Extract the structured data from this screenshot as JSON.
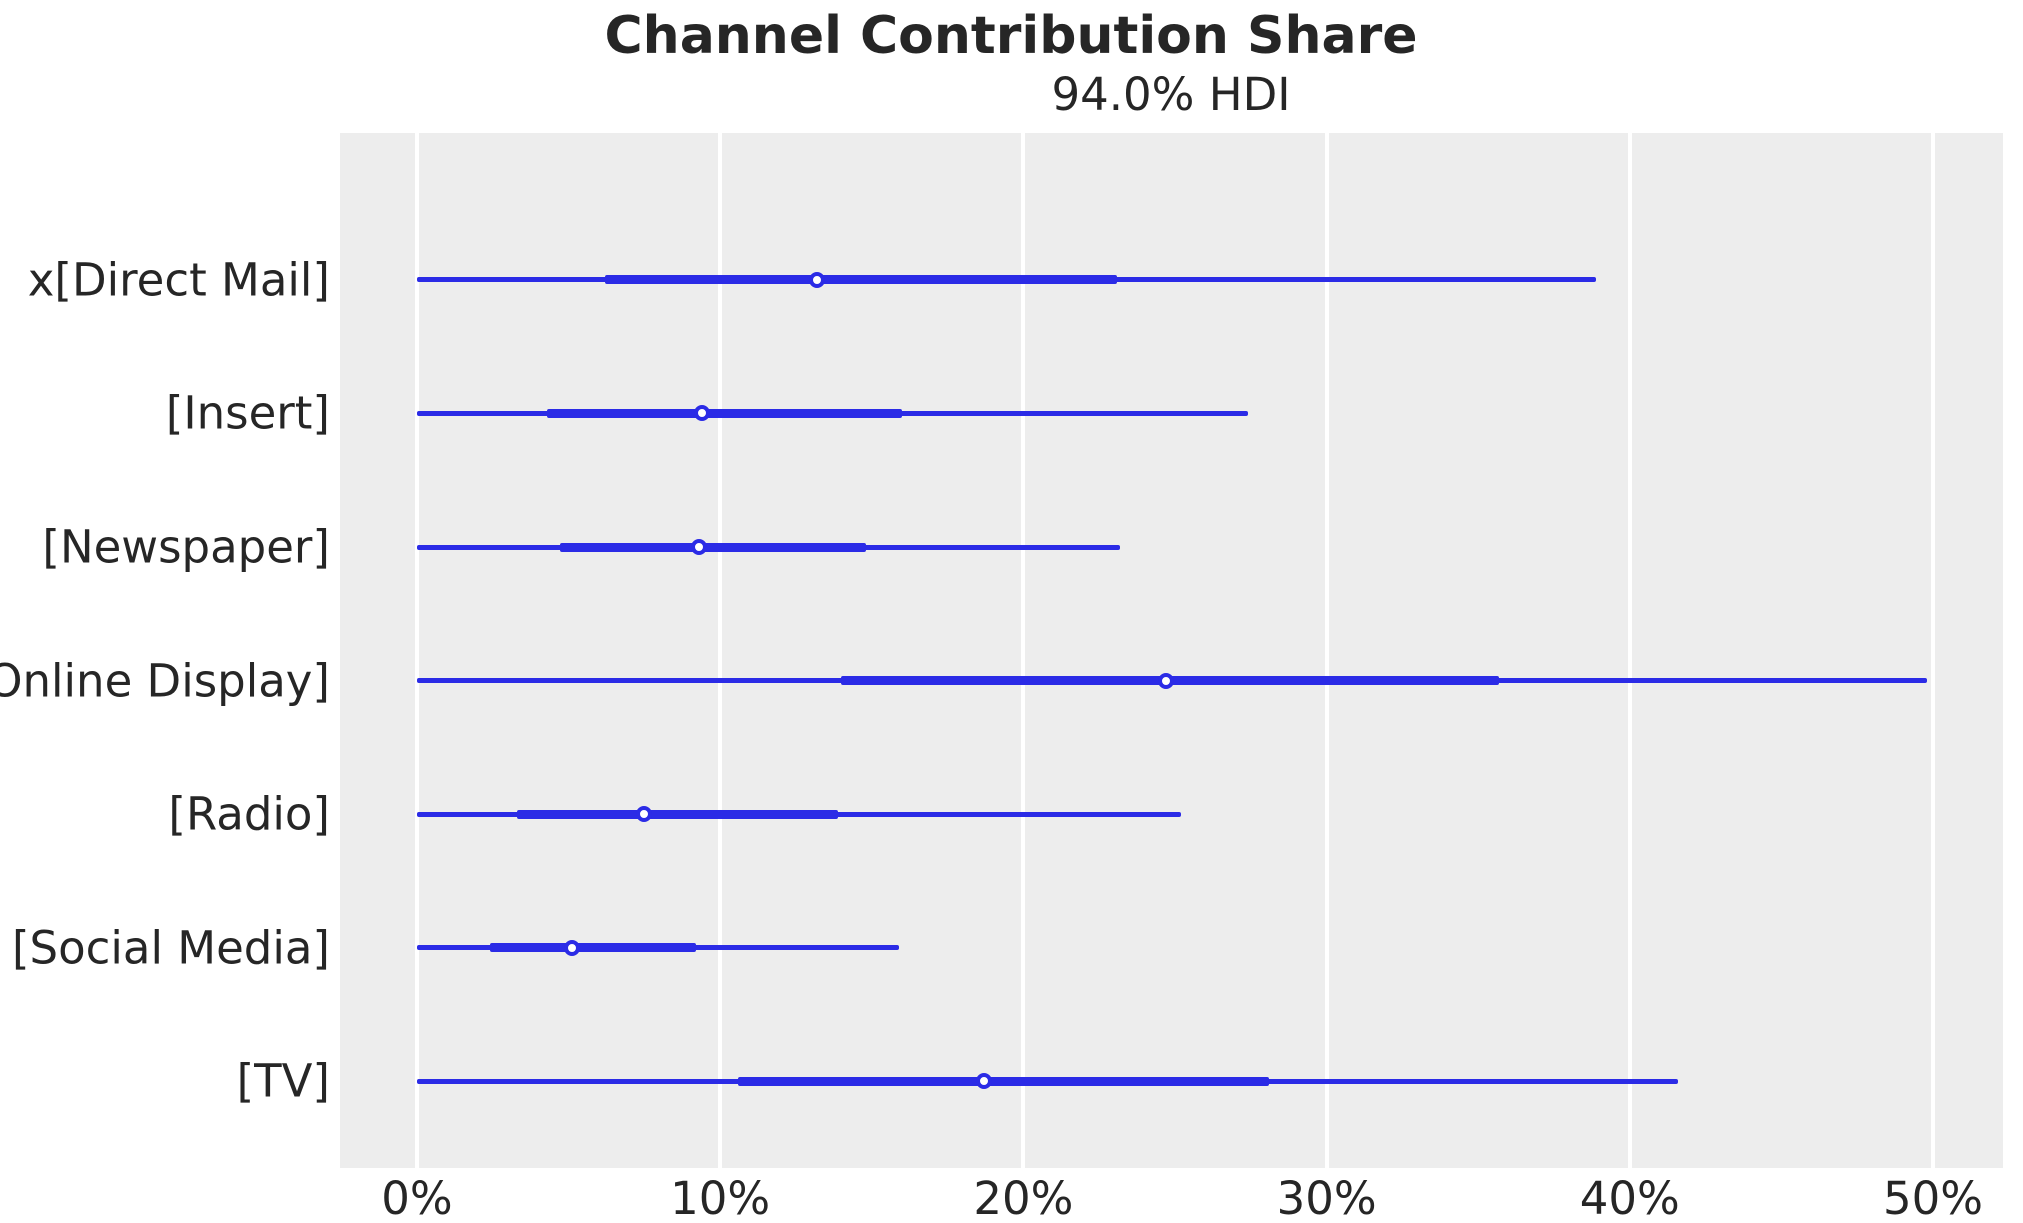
{
  "title": "Channel Contribution Share",
  "subtitle": "94.0% HDI",
  "chart_data": {
    "type": "forest",
    "title": "Channel Contribution Share",
    "subtitle": "94.0% HDI",
    "hdi_probability": "94.0%",
    "unit": "percent",
    "xlabel": "",
    "ylabel": "",
    "grid": true,
    "xlim": [
      -2.54,
      52.31
    ],
    "x_tick_values": [
      0,
      10,
      20,
      30,
      40,
      50
    ],
    "x_tick_labels": [
      "0%",
      "10%",
      "20%",
      "30%",
      "40%",
      "50%"
    ],
    "legend_position": "none",
    "series": [
      {
        "label": "x[Direct Mail]",
        "hdi_low": 0,
        "hdi_high": 38.9,
        "quartile_low": 6.2,
        "quartile_high": 23.1,
        "point": 13.2
      },
      {
        "label": "[Insert]",
        "hdi_low": 0,
        "hdi_high": 27.4,
        "quartile_low": 4.3,
        "quartile_high": 16.0,
        "point": 9.4
      },
      {
        "label": "[Newspaper]",
        "hdi_low": 0,
        "hdi_high": 23.2,
        "quartile_low": 4.7,
        "quartile_high": 14.8,
        "point": 9.3
      },
      {
        "label": "[Online Display]",
        "hdi_low": 0,
        "hdi_high": 49.8,
        "quartile_low": 14.0,
        "quartile_high": 35.7,
        "point": 24.7
      },
      {
        "label": "[Radio]",
        "hdi_low": 0,
        "hdi_high": 25.2,
        "quartile_low": 3.3,
        "quartile_high": 13.9,
        "point": 7.5
      },
      {
        "label": "[Social Media]",
        "hdi_low": 0,
        "hdi_high": 15.9,
        "quartile_low": 2.4,
        "quartile_high": 9.2,
        "point": 5.1
      },
      {
        "label": "[TV]",
        "hdi_low": 0,
        "hdi_high": 41.6,
        "quartile_low": 10.6,
        "quartile_high": 28.1,
        "point": 18.7
      }
    ],
    "layout": {
      "row_start_pct": 14.2,
      "row_step_pct": 12.9
    },
    "colors": {
      "interval_line": "#2b2be6",
      "marker_fill": "#ffffff",
      "plot_background": "#ededed",
      "gridline": "#ffffff",
      "text": "#262626",
      "page_background": "#ffffff"
    }
  }
}
